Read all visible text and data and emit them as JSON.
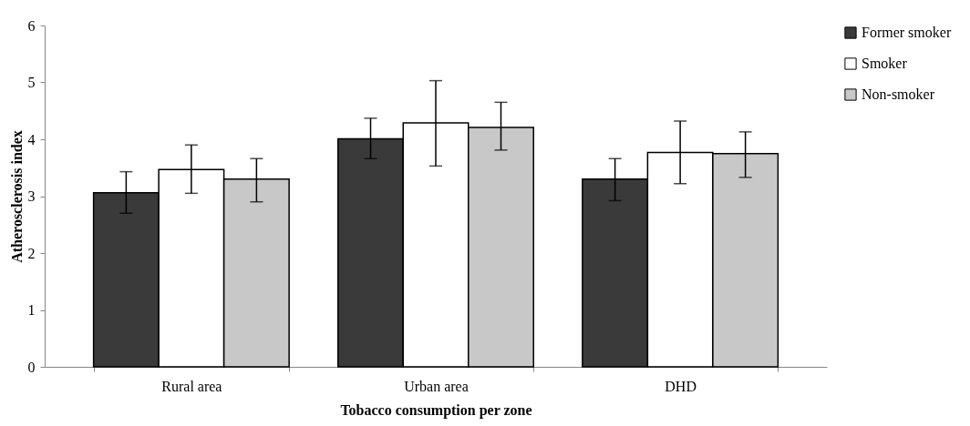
{
  "chart_data": {
    "type": "bar",
    "xlabel": "Tobacco consumption per zone",
    "ylabel": "Atherosclerosis index",
    "categories": [
      "Rural area",
      "Urban area",
      "DHD"
    ],
    "series": [
      {
        "name": "Former smoker",
        "color": "#3a3a3a",
        "values": [
          3.06,
          4.01,
          3.3
        ],
        "errors": [
          [
            2.7,
            3.43
          ],
          [
            3.66,
            4.37
          ],
          [
            2.92,
            3.66
          ]
        ]
      },
      {
        "name": "Smoker",
        "color": "#ffffff",
        "values": [
          3.47,
          4.29,
          3.77
        ],
        "errors": [
          [
            3.05,
            3.9
          ],
          [
            3.53,
            5.03
          ],
          [
            3.22,
            4.32
          ]
        ]
      },
      {
        "name": "Non-smoker",
        "color": "#c8c8c8",
        "values": [
          3.3,
          4.21,
          3.75
        ],
        "errors": [
          [
            2.9,
            3.66
          ],
          [
            3.81,
            4.65
          ],
          [
            3.33,
            4.13
          ]
        ]
      }
    ],
    "ylim": [
      0,
      6
    ],
    "yticks": [
      0,
      1,
      2,
      3,
      4,
      5,
      6
    ],
    "grid": false,
    "legend": "right"
  }
}
